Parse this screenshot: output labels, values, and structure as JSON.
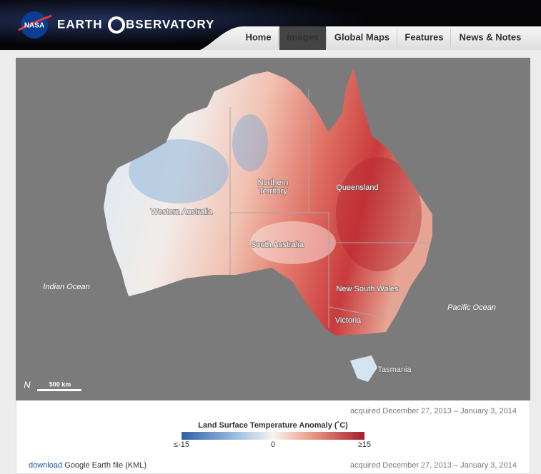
{
  "header": {
    "logo": "NASA",
    "site_title_1": "EARTH",
    "site_title_2": "BSERVATORY"
  },
  "nav": [
    "Home",
    "Images",
    "Global Maps",
    "Features",
    "News & Notes"
  ],
  "nav_active": "Images",
  "map": {
    "labels": [
      "Western Australia",
      "Northern",
      "Territory",
      "Queensland",
      "South Australia",
      "New South Wales",
      "Victoria",
      "Tasmania",
      "Indian Ocean",
      "Pacific Ocean"
    ],
    "scale_bar": "500 km",
    "north": "N"
  },
  "caption": {
    "acquired": "acquired December 27, 2013 – January 3, 2014",
    "legend_title": "Land Surface Temperature Anomaly (˚C)",
    "legend_ticks": [
      "≤-15",
      "0",
      "≥15"
    ]
  },
  "download": {
    "link": "download",
    "text": "Google Earth file (KML)",
    "acquired": "acquired December 27, 2013 – January 3, 2014"
  }
}
